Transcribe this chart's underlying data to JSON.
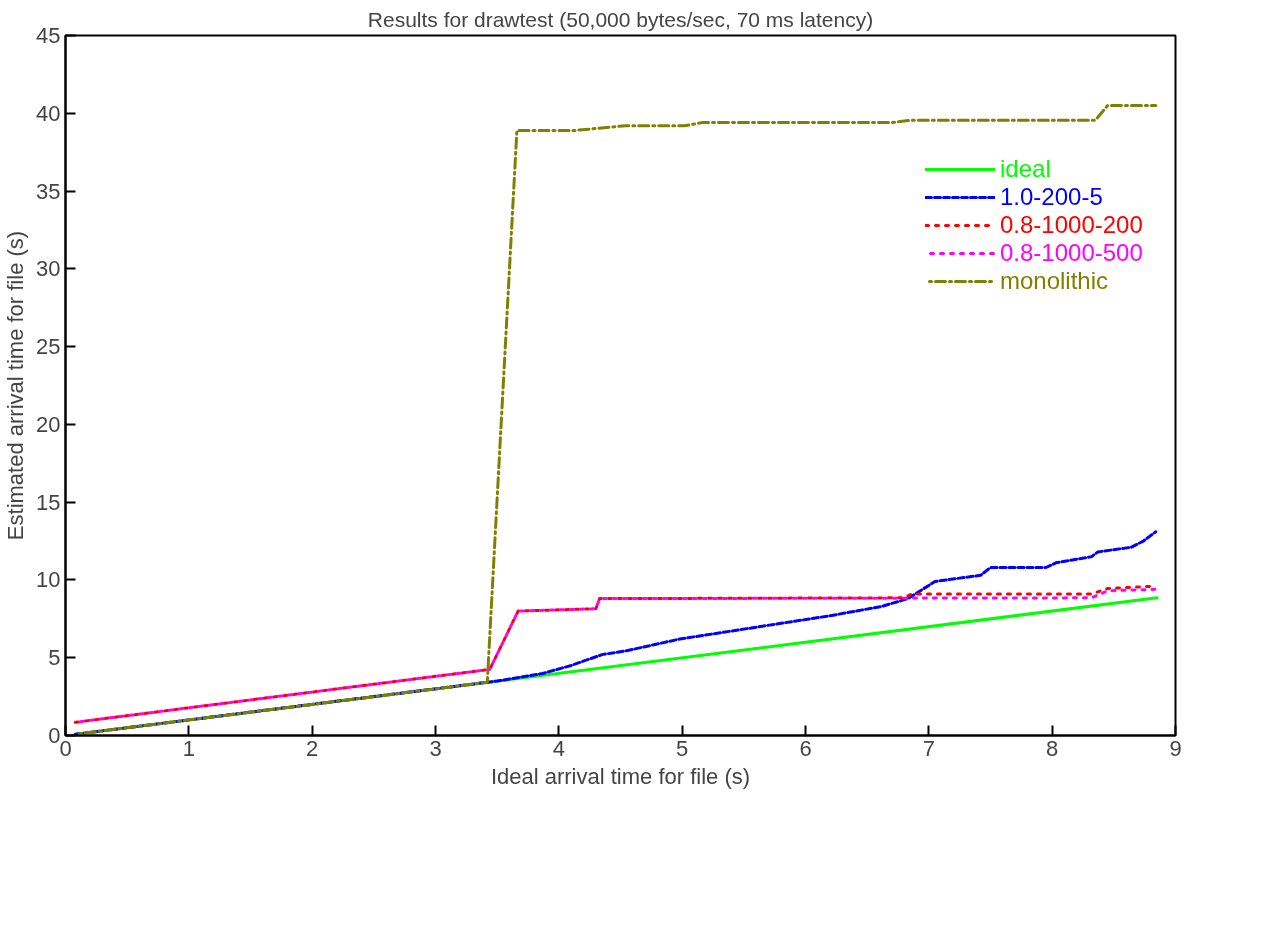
{
  "chart_data": {
    "type": "line",
    "title": "Results for drawtest (50,000 bytes/sec, 70 ms latency)",
    "xlabel": "Ideal arrival time for file (s)",
    "ylabel": "Estimated arrival time for file (s)",
    "xlim": [
      0,
      9
    ],
    "ylim": [
      0,
      45
    ],
    "xticks": [
      0,
      1,
      2,
      3,
      4,
      5,
      6,
      7,
      8,
      9
    ],
    "yticks": [
      0,
      5,
      10,
      15,
      20,
      25,
      30,
      35,
      40,
      45
    ],
    "grid": false,
    "legend": "top right",
    "marker": "none",
    "series": [
      {
        "name": "ideal",
        "color": "#00ff00",
        "line_style": "solid",
        "x": [
          0.08,
          8.85
        ],
        "values": [
          0.08,
          8.85
        ]
      },
      {
        "name": "1.0-200-5",
        "color": "#0000ff",
        "line_style": "dashed",
        "x": [
          0.08,
          3.5,
          3.87,
          4.1,
          4.35,
          4.55,
          4.98,
          6.2,
          6.62,
          6.83,
          7.05,
          7.42,
          7.5,
          7.95,
          8.03,
          8.32,
          8.37,
          8.64,
          8.74,
          8.84
        ],
        "values": [
          0.08,
          3.5,
          3.99,
          4.5,
          5.2,
          5.45,
          6.2,
          7.7,
          8.3,
          8.8,
          9.9,
          10.3,
          10.8,
          10.8,
          11.1,
          11.5,
          11.8,
          12.1,
          12.5,
          13.1
        ]
      },
      {
        "name": "0.8-1000-200",
        "color": "#ff0000",
        "line_style": "dotted",
        "x": [
          0.08,
          3.44,
          3.67,
          4.3,
          4.33,
          6.8,
          6.86,
          8.32,
          8.45,
          8.84
        ],
        "values": [
          0.85,
          4.25,
          8.0,
          8.15,
          8.8,
          8.85,
          9.1,
          9.1,
          9.45,
          9.6
        ]
      },
      {
        "name": "0.8-1000-500",
        "color": "#ff00ff",
        "line_style": "dotted",
        "x": [
          0.08,
          3.44,
          3.67,
          4.3,
          4.33,
          8.32,
          8.45,
          8.84
        ],
        "values": [
          0.85,
          4.25,
          8.0,
          8.15,
          8.8,
          8.85,
          9.3,
          9.4
        ]
      },
      {
        "name": "monolithic",
        "color": "#808000",
        "line_style": "dashdot",
        "x": [
          0.08,
          3.42,
          3.66,
          4.14,
          4.54,
          5.02,
          5.16,
          6.7,
          6.85,
          8.35,
          8.45,
          8.84
        ],
        "values": [
          0.08,
          3.42,
          38.9,
          38.9,
          39.2,
          39.2,
          39.4,
          39.4,
          39.55,
          39.55,
          40.5,
          40.5
        ]
      }
    ]
  }
}
